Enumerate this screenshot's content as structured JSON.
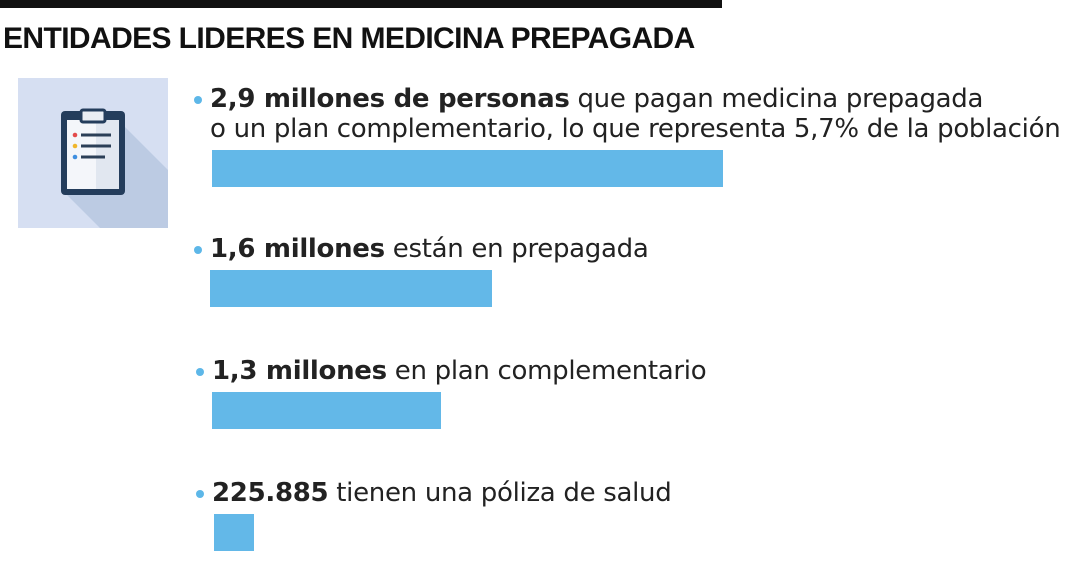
{
  "title": "ENTIDADES LIDERES EN MEDICINA PREPAGADA",
  "icon": "clipboard-icon",
  "colors": {
    "bar": "#63b8e8",
    "bullet": "#5db7e8",
    "icon_bg": "#d6dff2",
    "rule": "#111111"
  },
  "chart_data": {
    "type": "bar",
    "orientation": "horizontal",
    "title": "ENTIDADES LIDERES EN MEDICINA PREPAGADA",
    "unit": "personas",
    "categories": [
      "2,9 millones de personas",
      "1,6 millones",
      "1,3 millones",
      "225.885"
    ],
    "values": [
      2900000,
      1600000,
      1300000,
      225885
    ],
    "items": [
      {
        "bold": "2,9 millones de personas",
        "text": " que pagan medicina prepagada",
        "text2": "o un plan complementario, lo que representa 5,7% de la población",
        "value": 2900000
      },
      {
        "bold": "1,6 millones",
        "text": " están en prepagada",
        "value": 1600000
      },
      {
        "bold": "1,3 millones",
        "text": " en plan complementario",
        "value": 1300000
      },
      {
        "bold": "225.885",
        "text": " tienen una póliza de salud",
        "value": 225885
      }
    ]
  }
}
